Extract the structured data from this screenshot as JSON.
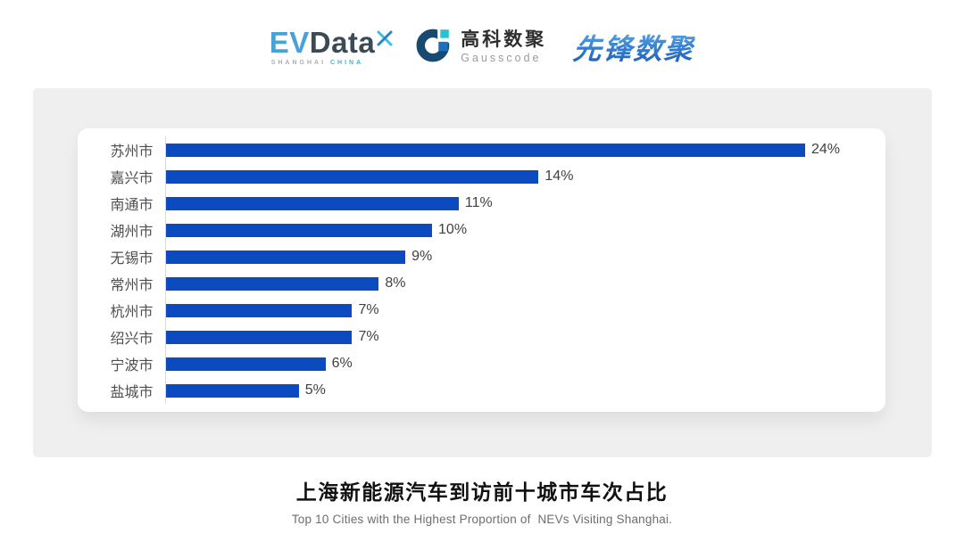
{
  "header": {
    "evdata": {
      "ev": "EV",
      "data": "Data",
      "sub_left": "SHANGHAI",
      "sub_right": "CHINA"
    },
    "gausscode": {
      "cn": "高科数聚",
      "en": "Gausscode"
    },
    "pioneer": {
      "text": "先锋数聚"
    }
  },
  "chart_data": {
    "type": "bar",
    "orientation": "horizontal",
    "title": "上海新能源汽车到访前十城市车次占比",
    "subtitle": "Top 10 Cities with the Highest Proportion of  NEVs Visiting Shanghai.",
    "categories": [
      "苏州市",
      "嘉兴市",
      "南通市",
      "湖州市",
      "无锡市",
      "常州市",
      "杭州市",
      "绍兴市",
      "宁波市",
      "盐城市"
    ],
    "values": [
      24,
      14,
      11,
      10,
      9,
      8,
      7,
      7,
      6,
      5
    ],
    "value_suffix": "%",
    "bar_color": "#0c4abf",
    "axis_color": "#d9d9d9",
    "xlim": [
      0,
      27
    ],
    "grid": false,
    "legend": false
  },
  "footer": {
    "title": "上海新能源汽车到访前十城市车次占比",
    "subtitle": "Top 10 Cities with the Highest Proportion of  NEVs Visiting Shanghai."
  }
}
